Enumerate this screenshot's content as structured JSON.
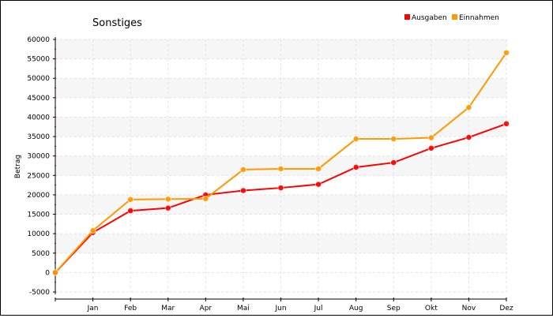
{
  "chart_data": {
    "type": "line",
    "title": "Sonstiges",
    "xlabel": "",
    "ylabel": "Betrag",
    "categories": [
      "",
      "Jan",
      "Feb",
      "Mar",
      "Apr",
      "Mai",
      "Jun",
      "Jul",
      "Aug",
      "Sep",
      "Okt",
      "Nov",
      "Dez"
    ],
    "ylim": [
      -5000,
      60000
    ],
    "yticks": [
      -5000,
      0,
      5000,
      10000,
      15000,
      20000,
      25000,
      30000,
      35000,
      40000,
      45000,
      50000,
      55000,
      60000
    ],
    "grid": true,
    "legend": "top-right",
    "series": [
      {
        "name": "Ausgaben",
        "color": "#ff0000",
        "values": [
          0,
          10300,
          15900,
          16600,
          20000,
          21100,
          21800,
          22700,
          27100,
          28300,
          32000,
          34800,
          38300
        ]
      },
      {
        "name": "Einnahmen",
        "color": "#ff9900",
        "values": [
          0,
          10800,
          18800,
          18900,
          19000,
          26500,
          26700,
          26700,
          34400,
          34400,
          34700,
          42500,
          56600
        ]
      }
    ]
  }
}
